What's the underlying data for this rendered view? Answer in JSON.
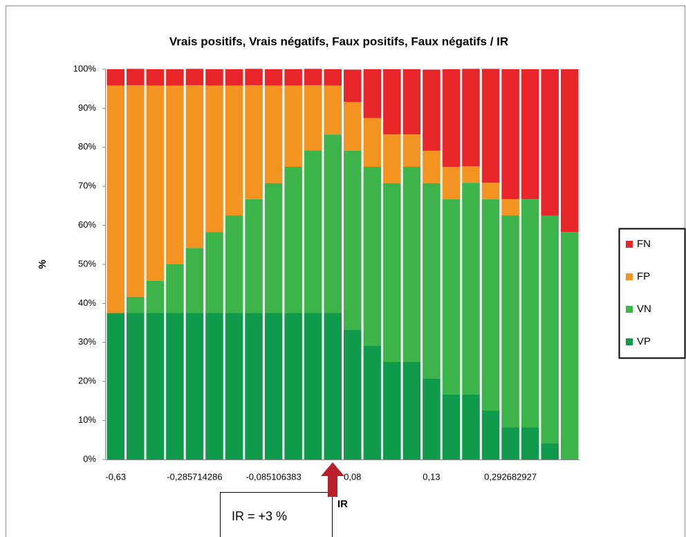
{
  "chart_data": {
    "type": "stacked_bar",
    "title": "Vrais positifs, Vrais négatifs, Faux positifs, Faux négatifs / IR",
    "y_label": "%",
    "categories": [
      "-0,63",
      null,
      null,
      null,
      "-0,285714286",
      null,
      null,
      null,
      "-0,085106383",
      null,
      null,
      null,
      "0,08",
      null,
      null,
      null,
      "0,13",
      null,
      null,
      null,
      "0,292682927",
      null,
      null,
      null
    ],
    "series": [
      {
        "name": "VP",
        "color": "#109a4b",
        "values": [
          37.5,
          37.5,
          37.5,
          37.5,
          37.5,
          37.5,
          37.5,
          37.5,
          37.5,
          37.5,
          37.5,
          37.5,
          33.3,
          29.2,
          25,
          25,
          20.8,
          16.7,
          16.7,
          12.5,
          8.3,
          8.3,
          4.2,
          0
        ]
      },
      {
        "name": "VN",
        "color": "#3cb44a",
        "values": [
          0,
          4.2,
          8.3,
          12.5,
          16.7,
          20.8,
          25,
          29.2,
          33.3,
          37.5,
          41.7,
          45.8,
          45.8,
          45.8,
          45.8,
          50,
          50,
          50,
          54.2,
          54.2,
          54.2,
          58.4,
          58.3,
          58.3
        ]
      },
      {
        "name": "FP",
        "color": "#f39322",
        "values": [
          58.3,
          54.2,
          50,
          45.8,
          41.7,
          37.5,
          33.3,
          29.2,
          25,
          20.8,
          16.7,
          12.5,
          12.5,
          12.5,
          12.5,
          8.3,
          8.3,
          8.3,
          4.2,
          4.2,
          4.2,
          0,
          0,
          0
        ]
      },
      {
        "name": "FN",
        "color": "#e8262a",
        "values": [
          4.2,
          4.2,
          4.2,
          4.2,
          4.2,
          4.2,
          4.2,
          4.2,
          4.2,
          4.2,
          4.2,
          4.2,
          8.3,
          12.5,
          16.7,
          16.7,
          20.8,
          25,
          25,
          29.2,
          33.3,
          33.3,
          37.5,
          41.7
        ]
      }
    ],
    "ylim": [
      0,
      100
    ],
    "yticks": [
      {
        "value": 0,
        "label": "0%"
      },
      {
        "value": 10,
        "label": "10%"
      },
      {
        "value": 20,
        "label": "20%"
      },
      {
        "value": 30,
        "label": "30%"
      },
      {
        "value": 40,
        "label": "40%"
      },
      {
        "value": 50,
        "label": "50%"
      },
      {
        "value": 60,
        "label": "60%"
      },
      {
        "value": 70,
        "label": "70%"
      },
      {
        "value": 80,
        "label": "80%"
      },
      {
        "value": 90,
        "label": "90%"
      },
      {
        "value": 100,
        "label": "100%"
      }
    ],
    "legend": "right",
    "annotations": [
      "IR",
      "IR = +3 %"
    ]
  }
}
